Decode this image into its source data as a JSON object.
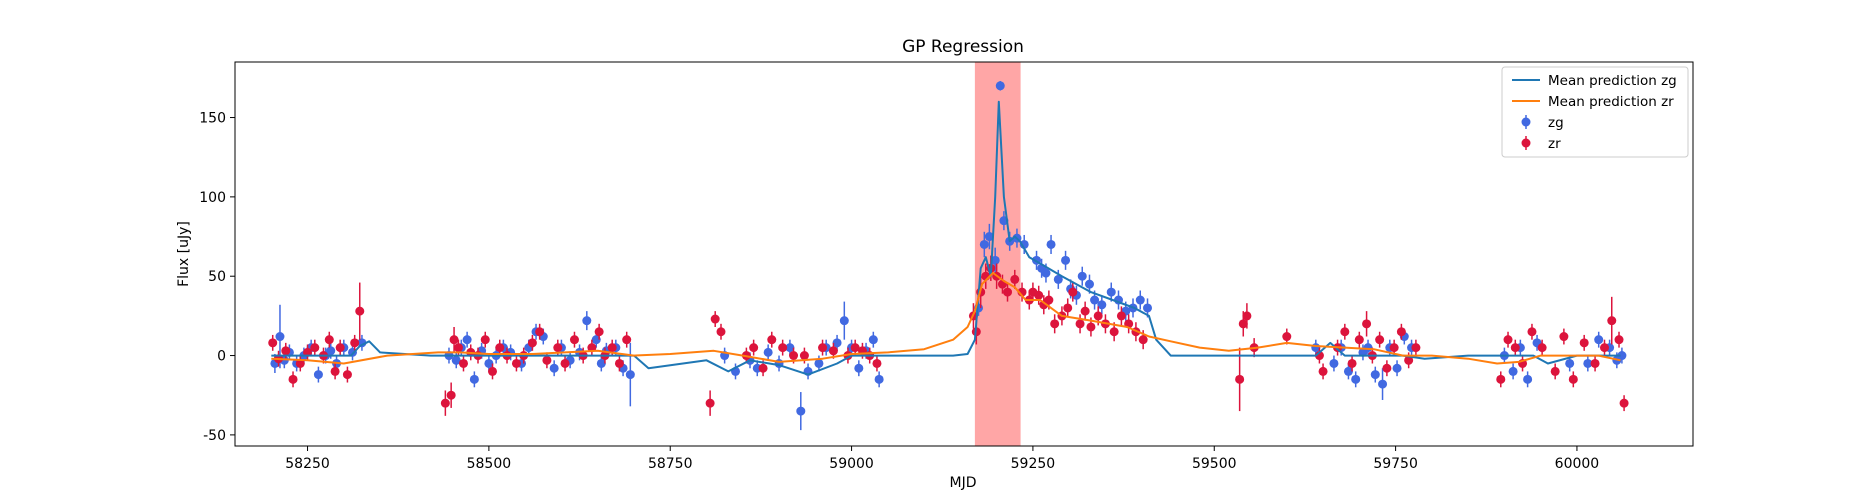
{
  "chart_data": {
    "type": "scatter",
    "title": "GP Regression",
    "xlabel": "MJD",
    "ylabel": "Flux [uJy]",
    "xlim": [
      58150,
      60160
    ],
    "ylim": [
      -57,
      185
    ],
    "xticks": [
      58250,
      58500,
      58750,
      59000,
      59250,
      59500,
      59750,
      60000
    ],
    "yticks": [
      -50,
      0,
      50,
      100,
      150
    ],
    "grid": false,
    "legend_position": "top-right",
    "highlight_span": {
      "x0": 59170,
      "x1": 59233,
      "color": "#ff6b6b"
    },
    "colors": {
      "zg_line": "#1f77b4",
      "zr_line": "#ff7f0e",
      "zg_points": "#4169e1",
      "zr_points": "#dc143c"
    },
    "legend": [
      {
        "label": "Mean prediction zg",
        "kind": "line",
        "color": "#1f77b4"
      },
      {
        "label": "Mean prediction zr",
        "kind": "line",
        "color": "#ff7f0e"
      },
      {
        "label": "zg",
        "kind": "errorbar",
        "color": "#4169e1"
      },
      {
        "label": "zr",
        "kind": "errorbar",
        "color": "#dc143c"
      }
    ],
    "series": [
      {
        "name": "Mean prediction zg",
        "kind": "line",
        "color": "#1f77b4",
        "x": [
          58200,
          58260,
          58310,
          58322,
          58335,
          58350,
          58420,
          58500,
          58600,
          58700,
          58720,
          58800,
          58830,
          58860,
          58900,
          58940,
          58980,
          59000,
          59060,
          59140,
          59160,
          59170,
          59178,
          59185,
          59192,
          59198,
          59203,
          59210,
          59218,
          59225,
          59232,
          59245,
          59260,
          59290,
          59330,
          59360,
          59390,
          59410,
          59420,
          59440,
          59520,
          59600,
          59640,
          59660,
          59680,
          59700,
          59760,
          59790,
          59850,
          59900,
          59920,
          59940,
          59960,
          60000,
          60060
        ],
        "y": [
          0,
          0,
          0,
          6,
          9,
          2,
          0,
          0,
          0,
          0,
          -8,
          -3,
          -10,
          -3,
          -6,
          -12,
          -5,
          0,
          0,
          0,
          1,
          10,
          55,
          62,
          50,
          100,
          160,
          100,
          72,
          75,
          72,
          62,
          58,
          50,
          40,
          35,
          30,
          25,
          10,
          0,
          0,
          0,
          0,
          8,
          0,
          0,
          0,
          -2,
          0,
          0,
          0,
          0,
          -5,
          0,
          0
        ]
      },
      {
        "name": "Mean prediction zr",
        "kind": "line",
        "color": "#ff7f0e",
        "x": [
          58200,
          58250,
          58300,
          58360,
          58430,
          58460,
          58500,
          58560,
          58650,
          58700,
          58750,
          58810,
          58850,
          58900,
          58960,
          59000,
          59050,
          59100,
          59140,
          59160,
          59170,
          59180,
          59195,
          59210,
          59225,
          59240,
          59260,
          59290,
          59330,
          59380,
          59410,
          59440,
          59480,
          59520,
          59560,
          59600,
          59640,
          59680,
          59720,
          59760,
          59800,
          59850,
          59890,
          59920,
          59950,
          59990,
          60030,
          60060
        ],
        "y": [
          -2,
          -3,
          -5,
          0,
          2,
          2,
          1,
          1,
          3,
          0,
          1,
          3,
          0,
          -4,
          -2,
          1,
          2,
          4,
          10,
          18,
          28,
          45,
          52,
          47,
          43,
          35,
          35,
          25,
          22,
          18,
          12,
          9,
          5,
          3,
          5,
          8,
          6,
          5,
          4,
          0,
          0,
          -2,
          -5,
          -4,
          0,
          0,
          0,
          -3
        ]
      },
      {
        "name": "zg",
        "kind": "errorbar",
        "color": "#4169e1",
        "x": [
          58205,
          58212,
          58218,
          58225,
          58235,
          58245,
          58255,
          58265,
          58275,
          58282,
          58290,
          58300,
          58312,
          58325,
          58445,
          58455,
          58462,
          58470,
          58480,
          58490,
          58500,
          58510,
          58520,
          58530,
          58545,
          58555,
          58565,
          58575,
          58590,
          58600,
          58612,
          58625,
          58635,
          58648,
          58655,
          58662,
          58675,
          58685,
          58695,
          58825,
          58840,
          58860,
          58870,
          58885,
          58900,
          58915,
          58930,
          58940,
          58955,
          58965,
          58980,
          58990,
          59000,
          59010,
          59020,
          59030,
          59038,
          59175,
          59183,
          59190,
          59198,
          59205,
          59210,
          59218,
          59228,
          59238,
          59255,
          59262,
          59268,
          59275,
          59285,
          59295,
          59302,
          59310,
          59318,
          59328,
          59335,
          59345,
          59358,
          59368,
          59378,
          59388,
          59398,
          59408,
          59640,
          59665,
          59675,
          59685,
          59695,
          59705,
          59712,
          59722,
          59732,
          59742,
          59752,
          59762,
          59772,
          59900,
          59912,
          59922,
          59932,
          59945,
          59990,
          60015,
          60030,
          60045,
          60055,
          60062
        ],
        "y": [
          -5,
          12,
          -3,
          2,
          -5,
          0,
          5,
          -12,
          0,
          3,
          -5,
          5,
          2,
          8,
          0,
          -3,
          5,
          10,
          -15,
          3,
          -5,
          0,
          5,
          2,
          -5,
          5,
          15,
          12,
          -8,
          5,
          -3,
          2,
          22,
          10,
          -5,
          3,
          5,
          -8,
          -12,
          0,
          -10,
          -3,
          -8,
          2,
          -5,
          5,
          -35,
          -10,
          -5,
          5,
          8,
          22,
          5,
          -8,
          3,
          10,
          -15,
          30,
          70,
          75,
          60,
          170,
          85,
          72,
          74,
          70,
          60,
          55,
          52,
          70,
          48,
          60,
          42,
          38,
          50,
          45,
          35,
          32,
          40,
          35,
          28,
          30,
          35,
          30,
          5,
          -5,
          5,
          -10,
          -15,
          2,
          5,
          -12,
          -18,
          5,
          -8,
          12,
          5,
          0,
          -10,
          5,
          -15,
          8,
          -5,
          -5,
          10,
          5,
          -3,
          0
        ],
        "yerr": [
          6,
          20,
          5,
          5,
          5,
          5,
          5,
          5,
          5,
          5,
          5,
          5,
          5,
          5,
          5,
          5,
          5,
          5,
          5,
          5,
          5,
          5,
          5,
          5,
          5,
          5,
          5,
          5,
          5,
          5,
          5,
          5,
          6,
          5,
          5,
          5,
          5,
          5,
          20,
          5,
          5,
          5,
          5,
          5,
          5,
          5,
          12,
          5,
          5,
          5,
          5,
          12,
          5,
          5,
          5,
          5,
          5,
          5,
          8,
          8,
          8,
          3,
          6,
          6,
          6,
          6,
          6,
          6,
          6,
          6,
          6,
          6,
          6,
          6,
          6,
          6,
          6,
          6,
          6,
          6,
          6,
          6,
          6,
          6,
          5,
          5,
          5,
          5,
          5,
          5,
          5,
          5,
          10,
          5,
          5,
          5,
          5,
          5,
          5,
          5,
          5,
          5,
          5,
          5,
          5,
          5,
          5,
          5
        ]
      },
      {
        "name": "zr",
        "kind": "errorbar",
        "color": "#dc143c",
        "x": [
          58202,
          58210,
          58220,
          58230,
          58240,
          58250,
          58260,
          58272,
          58280,
          58288,
          58295,
          58305,
          58315,
          58322,
          58440,
          58448,
          58452,
          58458,
          58465,
          58475,
          58485,
          58495,
          58505,
          58515,
          58525,
          58538,
          58548,
          58560,
          58570,
          58580,
          58595,
          58605,
          58618,
          58630,
          58642,
          58652,
          58660,
          58670,
          58680,
          58690,
          58805,
          58812,
          58820,
          58855,
          58865,
          58878,
          58890,
          58905,
          58920,
          58935,
          58960,
          58975,
          58995,
          59005,
          59015,
          59025,
          59035,
          59168,
          59172,
          59178,
          59185,
          59192,
          59200,
          59208,
          59215,
          59225,
          59235,
          59245,
          59250,
          59258,
          59265,
          59272,
          59280,
          59290,
          59298,
          59305,
          59315,
          59322,
          59330,
          59340,
          59350,
          59362,
          59372,
          59382,
          59392,
          59402,
          59535,
          59540,
          59545,
          59555,
          59600,
          59645,
          59650,
          59670,
          59680,
          59690,
          59700,
          59710,
          59718,
          59728,
          59738,
          59748,
          59758,
          59768,
          59778,
          59895,
          59905,
          59915,
          59925,
          59938,
          59952,
          59970,
          59982,
          59995,
          60010,
          60025,
          60038,
          60048,
          60058,
          60065
        ],
        "y": [
          8,
          -2,
          3,
          -15,
          -5,
          2,
          5,
          0,
          10,
          -10,
          5,
          -12,
          8,
          28,
          -30,
          -25,
          10,
          5,
          -5,
          2,
          0,
          10,
          -10,
          5,
          0,
          -5,
          0,
          8,
          15,
          -3,
          5,
          -5,
          10,
          0,
          5,
          15,
          0,
          5,
          -5,
          10,
          -30,
          23,
          15,
          0,
          5,
          -8,
          10,
          5,
          0,
          0,
          5,
          3,
          0,
          5,
          3,
          0,
          -5,
          25,
          15,
          40,
          50,
          55,
          50,
          45,
          40,
          48,
          40,
          35,
          40,
          38,
          32,
          35,
          20,
          25,
          30,
          40,
          20,
          28,
          18,
          25,
          20,
          15,
          25,
          20,
          15,
          10,
          -15,
          20,
          25,
          5,
          12,
          0,
          -10,
          5,
          15,
          -5,
          10,
          20,
          0,
          10,
          -8,
          5,
          15,
          -3,
          5,
          -15,
          10,
          5,
          -5,
          15,
          5,
          -10,
          12,
          -15,
          8,
          -5,
          5,
          22,
          10,
          -30
        ],
        "yerr": [
          5,
          5,
          5,
          5,
          5,
          5,
          5,
          5,
          5,
          5,
          5,
          5,
          5,
          18,
          8,
          8,
          8,
          5,
          5,
          5,
          5,
          5,
          5,
          5,
          5,
          5,
          5,
          5,
          5,
          5,
          5,
          5,
          5,
          5,
          5,
          5,
          5,
          5,
          5,
          5,
          8,
          5,
          5,
          5,
          5,
          5,
          5,
          5,
          5,
          5,
          5,
          5,
          5,
          5,
          5,
          5,
          5,
          8,
          8,
          10,
          8,
          8,
          8,
          6,
          6,
          6,
          6,
          6,
          6,
          6,
          6,
          6,
          6,
          6,
          6,
          6,
          6,
          6,
          6,
          6,
          6,
          6,
          6,
          6,
          6,
          6,
          20,
          8,
          8,
          6,
          5,
          5,
          5,
          5,
          5,
          5,
          5,
          8,
          5,
          5,
          5,
          5,
          5,
          5,
          5,
          5,
          5,
          5,
          5,
          5,
          5,
          5,
          5,
          5,
          5,
          5,
          5,
          15,
          5,
          5
        ]
      }
    ]
  }
}
